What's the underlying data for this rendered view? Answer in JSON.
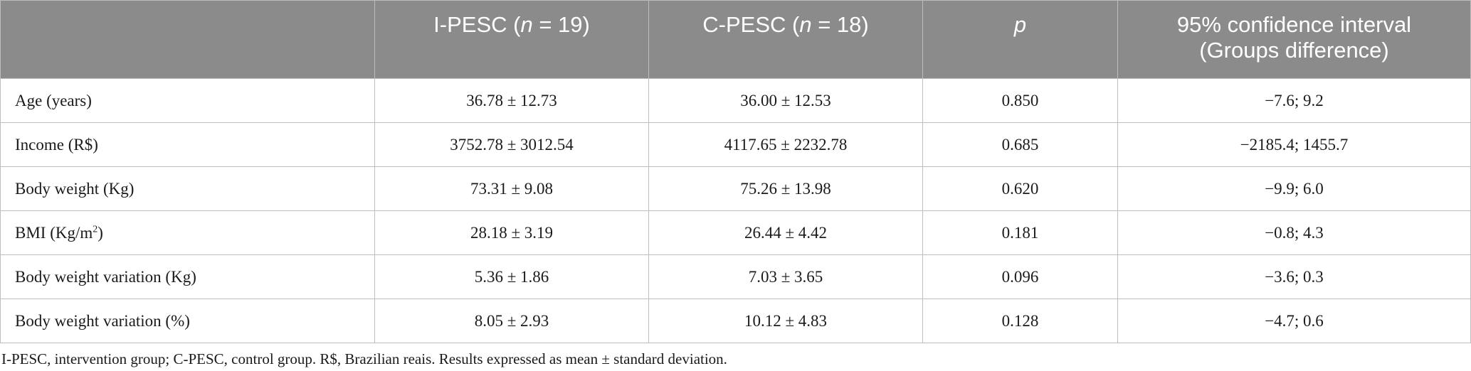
{
  "table": {
    "headers": {
      "col0": "",
      "col1_prefix": "I-PESC (",
      "col1_n": "n",
      "col1_suffix": " = 19)",
      "col2_prefix": "C-PESC (",
      "col2_n": "n",
      "col2_suffix": " = 18)",
      "col3": "p",
      "col4_line1": "95% confidence interval",
      "col4_line2": "(Groups difference)"
    },
    "rows": [
      {
        "label": "Age (years)",
        "label_sup": "",
        "label_after": "",
        "ipesc": "36.78 ± 12.73",
        "cpesc": "36.00 ± 12.53",
        "p": "0.850",
        "ci": "−7.6; 9.2"
      },
      {
        "label": "Income (R$)",
        "label_sup": "",
        "label_after": "",
        "ipesc": "3752.78 ± 3012.54",
        "cpesc": "4117.65 ± 2232.78",
        "p": "0.685",
        "ci": "−2185.4; 1455.7"
      },
      {
        "label": "Body weight (Kg)",
        "label_sup": "",
        "label_after": "",
        "ipesc": "73.31 ± 9.08",
        "cpesc": "75.26 ± 13.98",
        "p": "0.620",
        "ci": "−9.9; 6.0"
      },
      {
        "label": "BMI (Kg/m",
        "label_sup": "2",
        "label_after": ")",
        "ipesc": "28.18 ± 3.19",
        "cpesc": "26.44 ± 4.42",
        "p": "0.181",
        "ci": "−0.8; 4.3"
      },
      {
        "label": "Body weight variation (Kg)",
        "label_sup": "",
        "label_after": "",
        "ipesc": "5.36 ± 1.86",
        "cpesc": "7.03 ± 3.65",
        "p": "0.096",
        "ci": "−3.6; 0.3"
      },
      {
        "label": "Body weight variation (%)",
        "label_sup": "",
        "label_after": "",
        "ipesc": "8.05 ± 2.93",
        "cpesc": "10.12 ± 4.83",
        "p": "0.128",
        "ci": "−4.7; 0.6"
      }
    ]
  },
  "footnote": "I-PESC, intervention group; C-PESC, control group. R$, Brazilian reais. Results expressed as mean ± standard deviation."
}
